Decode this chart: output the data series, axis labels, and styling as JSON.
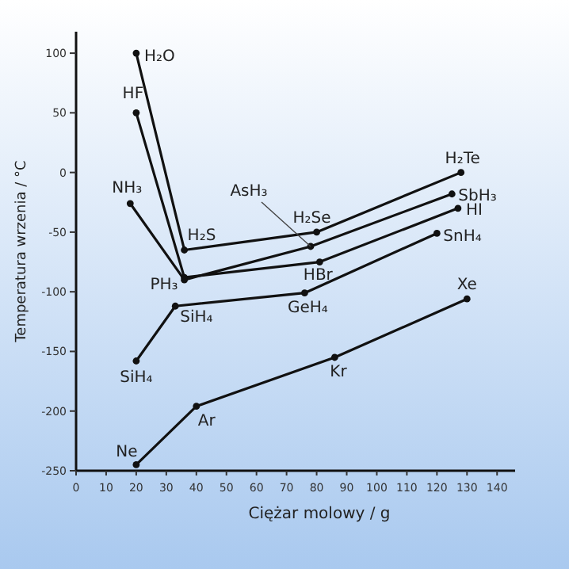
{
  "chart_data": {
    "type": "line",
    "xlabel": "Ciężar molowy / g",
    "ylabel": "Temperatura wrzenia / °C",
    "xlim": [
      0,
      146
    ],
    "ylim": [
      -250,
      118
    ],
    "xticks": [
      0,
      10,
      20,
      30,
      40,
      50,
      60,
      70,
      80,
      90,
      100,
      110,
      120,
      130,
      140
    ],
    "yticks": [
      -250,
      -200,
      -150,
      -100,
      -50,
      0,
      50,
      100
    ],
    "grid": false,
    "marker": "circle",
    "line_style": "solid",
    "series": [
      {
        "color": "#111111",
        "x": [
          20,
          36,
          80,
          128
        ],
        "values": [
          100,
          -65,
          -50,
          0
        ]
      },
      {
        "color": "#111111",
        "x": [
          20,
          36,
          81,
          127
        ],
        "values": [
          50,
          -88,
          -75,
          -30
        ]
      },
      {
        "color": "#111111",
        "x": [
          18,
          36,
          78,
          125
        ],
        "values": [
          -26,
          -90,
          -62,
          -18
        ]
      },
      {
        "color": "#111111",
        "x": [
          20,
          33,
          76,
          120
        ],
        "values": [
          -158,
          -112,
          -101,
          -51
        ]
      },
      {
        "color": "#111111",
        "x": [
          20,
          40,
          86,
          130
        ],
        "values": [
          -245,
          -196,
          -155,
          -106
        ]
      }
    ],
    "annotations": [
      {
        "text": "H₂O",
        "x": 20,
        "y": 100
      },
      {
        "text": "HF",
        "x": 20,
        "y": 50
      },
      {
        "text": "NH₃",
        "x": 18,
        "y": -26
      },
      {
        "text": "H₂S",
        "x": 36,
        "y": -65
      },
      {
        "text": "PH₃",
        "x": 36,
        "y": -90
      },
      {
        "text": "AsH₃",
        "x": 78,
        "y": -62
      },
      {
        "text": "H₂Se",
        "x": 80,
        "y": -50
      },
      {
        "text": "HBr",
        "x": 81,
        "y": -75
      },
      {
        "text": "H₂Te",
        "x": 128,
        "y": 0
      },
      {
        "text": "SbH₃",
        "x": 125,
        "y": -18
      },
      {
        "text": "HI",
        "x": 127,
        "y": -30
      },
      {
        "text": "SnH₄",
        "x": 120,
        "y": -51
      },
      {
        "text": "GeH₄",
        "x": 76,
        "y": -101
      },
      {
        "text": "SiH₄",
        "x": 33,
        "y": -112
      },
      {
        "text": "SiH₄",
        "x": 20,
        "y": -158
      },
      {
        "text": "Ne",
        "x": 20,
        "y": -245
      },
      {
        "text": "Ar",
        "x": 40,
        "y": -196
      },
      {
        "text": "Kr",
        "x": 86,
        "y": -155
      },
      {
        "text": "Xe",
        "x": 130,
        "y": -106
      }
    ]
  }
}
